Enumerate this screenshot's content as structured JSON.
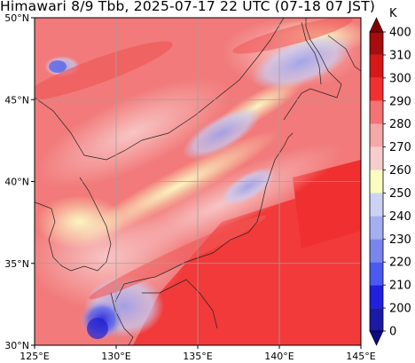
{
  "title": "Himawari 8/9 Tbb, 2025-07-17 22 UTC (07-18 07 JST)",
  "map": {
    "lon_range": [
      125,
      145
    ],
    "lat_range": [
      30,
      50
    ],
    "grid": true,
    "gridline_color": "#a0a0a0",
    "coastline_color": "#222222"
  },
  "axes": {
    "x_ticks": [
      {
        "value": 125,
        "label": "125°E"
      },
      {
        "value": 130,
        "label": "130°E"
      },
      {
        "value": 135,
        "label": "135°E"
      },
      {
        "value": 140,
        "label": "140°E"
      },
      {
        "value": 145,
        "label": "145°E"
      }
    ],
    "y_ticks": [
      {
        "value": 50,
        "label": "50°N"
      },
      {
        "value": 45,
        "label": "45°N"
      },
      {
        "value": 40,
        "label": "40°N"
      },
      {
        "value": 35,
        "label": "35°N"
      },
      {
        "value": 30,
        "label": "30°N"
      }
    ]
  },
  "colorbar": {
    "unit": "K",
    "levels": [
      0,
      200,
      210,
      220,
      230,
      240,
      250,
      260,
      270,
      280,
      290,
      300,
      310,
      400
    ],
    "colors": [
      "#1a1aa6",
      "#2020e0",
      "#4a5af0",
      "#7a86ee",
      "#a6aef2",
      "#cdd2f5",
      "#fafcc0",
      "#f7cccc",
      "#f6a7a7",
      "#f57373",
      "#f23030",
      "#d81818",
      "#a80c0c"
    ],
    "extend_low_color": "#0c0c80",
    "extend_high_color": "#800000"
  }
}
